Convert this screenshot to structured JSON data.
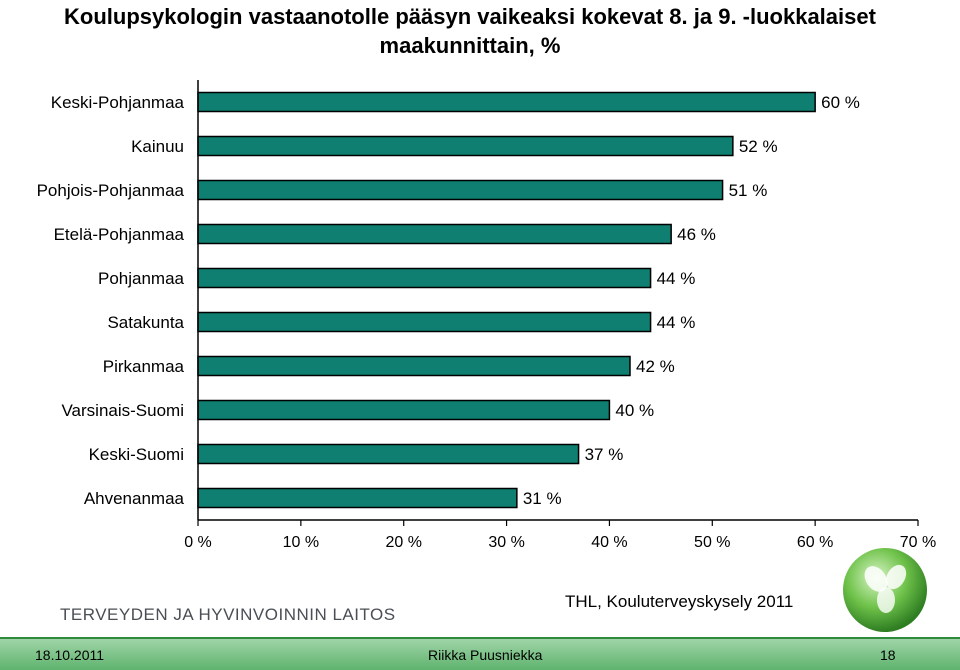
{
  "title": "Koulupsykologin vastaanotolle pääsyn vaikeaksi kokevat 8. ja 9. -luokkalaiset maakunnittain, %",
  "chart_data": {
    "type": "bar",
    "orientation": "horizontal",
    "categories": [
      "Keski-Pohjanmaa",
      "Kainuu",
      "Pohjois-Pohjanmaa",
      "Etelä-Pohjanmaa",
      "Pohjanmaa",
      "Satakunta",
      "Pirkanmaa",
      "Varsinais-Suomi",
      "Keski-Suomi",
      "Ahvenanmaa"
    ],
    "values": [
      60,
      52,
      51,
      46,
      44,
      44,
      42,
      40,
      37,
      31
    ],
    "value_labels": [
      "60 %",
      "52 %",
      "51 %",
      "46 %",
      "44 %",
      "44 %",
      "42 %",
      "40 %",
      "37 %",
      "31 %"
    ],
    "xlim": [
      0,
      70
    ],
    "x_ticks": [
      "0 %",
      "10 %",
      "20 %",
      "30 %",
      "40 %",
      "50 %",
      "60 %",
      "70 %"
    ],
    "grid": false,
    "bar_color": "#0f7f72"
  },
  "footer": {
    "org_name": "TERVEYDEN JA HYVINVOINNIN LAITOS",
    "source": "THL, Kouluterveyskysely 2011",
    "date": "18.10.2011",
    "author": "Riikka Puusniekka",
    "page": "18"
  }
}
